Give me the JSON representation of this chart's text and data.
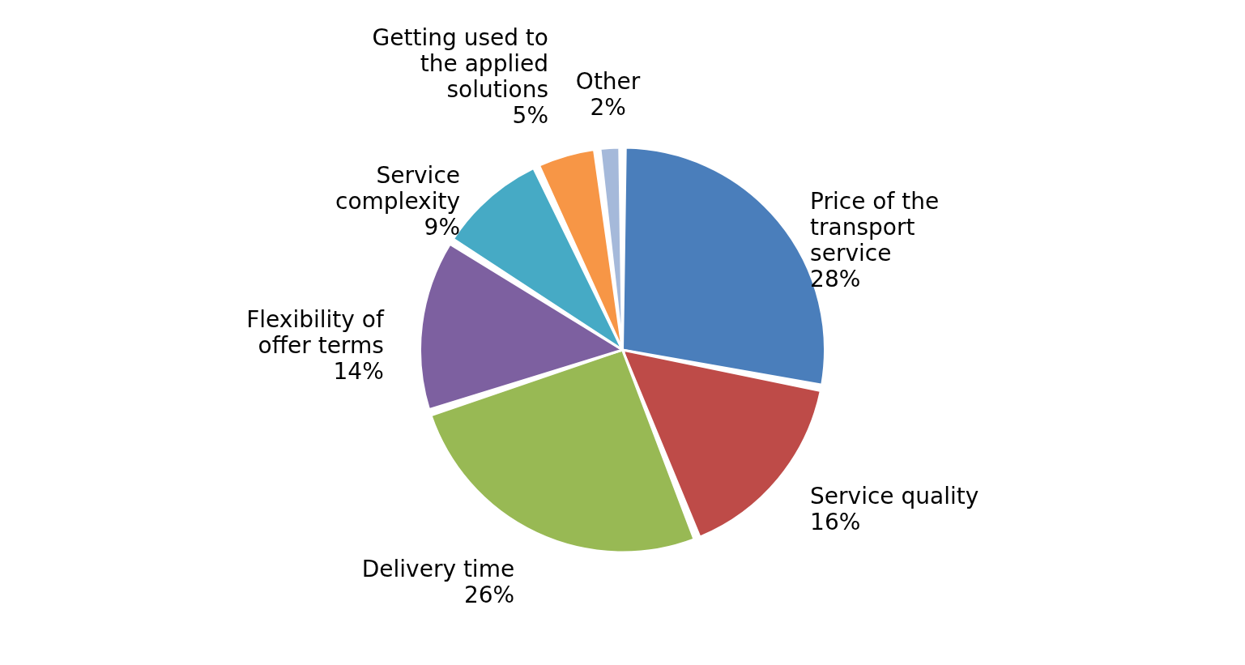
{
  "chart_data": {
    "type": "pie",
    "categories": [
      "Price of the transport service",
      "Service quality",
      "Delivery time",
      "Flexibility of offer terms",
      "Service complexity",
      "Getting used to the applied solutions",
      "Other"
    ],
    "values": [
      28,
      16,
      26,
      14,
      9,
      5,
      2
    ],
    "colors": [
      "#4a7ebb",
      "#be4b48",
      "#98b954",
      "#7d60a0",
      "#46aac5",
      "#f79646",
      "#a5b9da"
    ],
    "value_labels": [
      "28%",
      "16%",
      "26%",
      "14%",
      "9%",
      "5%",
      "2%"
    ]
  }
}
